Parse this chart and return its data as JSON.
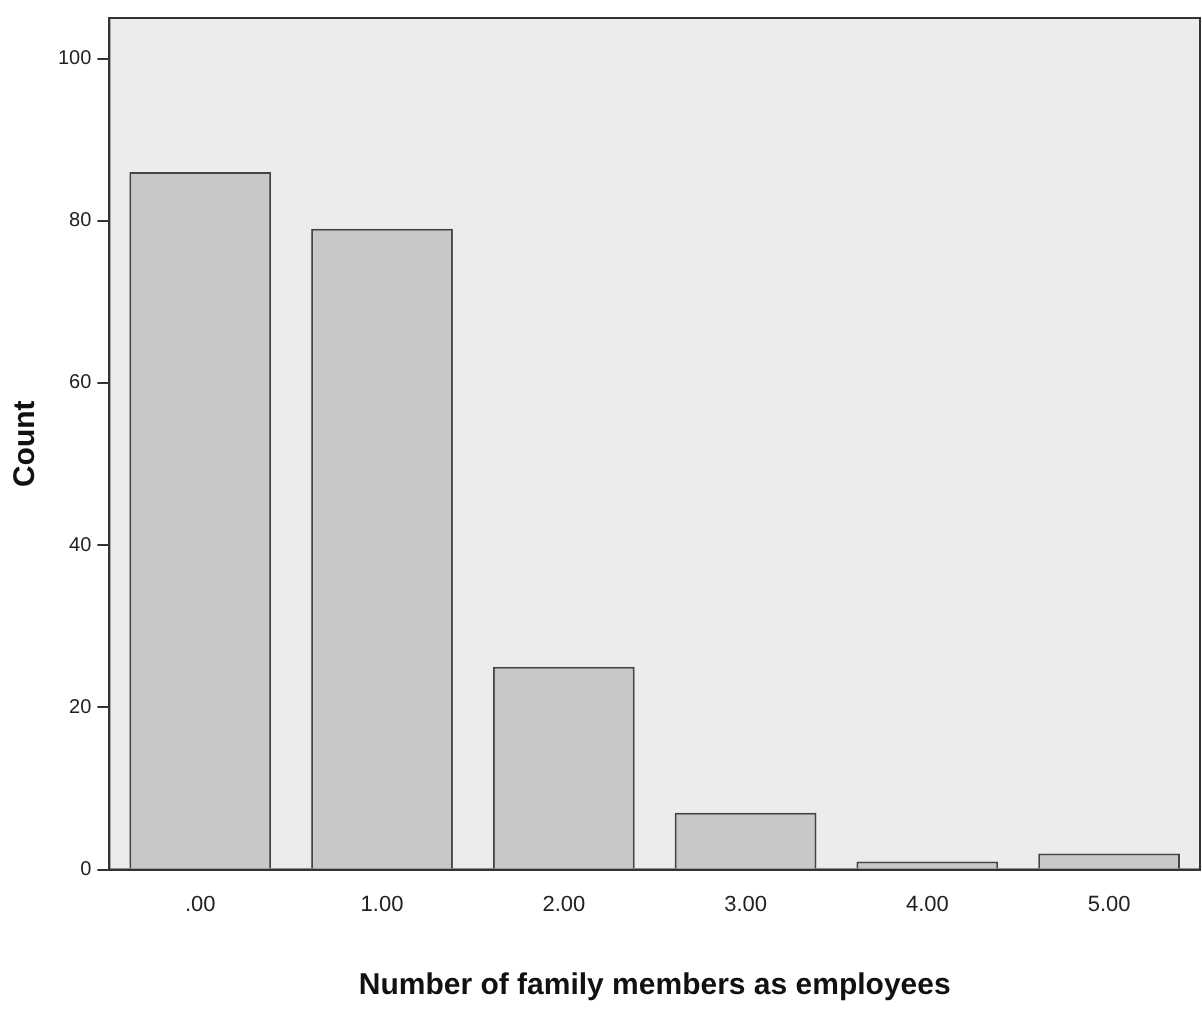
{
  "chart_data": {
    "type": "bar",
    "xlabel": "Number of family members as employees",
    "ylabel": "Count",
    "categories": [
      ".00",
      "1.00",
      "2.00",
      "3.00",
      "4.00",
      "5.00"
    ],
    "values": [
      86,
      79,
      25,
      7,
      1,
      2
    ],
    "color": "#c8c8c8",
    "ylim": [
      0,
      105
    ],
    "yticks": [
      0,
      20,
      40,
      60,
      80,
      100
    ],
    "grid": false
  }
}
